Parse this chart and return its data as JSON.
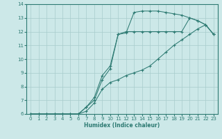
{
  "xlabel": "Humidex (Indice chaleur)",
  "xlim": [
    -0.5,
    23.5
  ],
  "ylim": [
    6,
    14
  ],
  "yticks": [
    6,
    7,
    8,
    9,
    10,
    11,
    12,
    13,
    14
  ],
  "xticks": [
    0,
    1,
    2,
    3,
    4,
    5,
    6,
    7,
    8,
    9,
    10,
    11,
    12,
    13,
    14,
    15,
    16,
    17,
    18,
    19,
    20,
    21,
    22,
    23
  ],
  "line_color": "#2d7a72",
  "bg_color": "#cce8e8",
  "grid_color": "#a8cccc",
  "lines": [
    {
      "x": [
        0,
        1,
        2,
        3,
        4,
        5,
        6,
        7,
        8,
        9,
        10,
        11,
        12,
        13,
        14,
        15,
        16,
        17,
        18,
        19,
        20,
        21,
        22,
        23
      ],
      "y": [
        6,
        6,
        6,
        6,
        6,
        6,
        6,
        6.5,
        7.2,
        8.8,
        9.5,
        11.8,
        11.9,
        13.4,
        13.5,
        13.5,
        13.5,
        13.4,
        13.3,
        13.2,
        13.0,
        12.8,
        12.5,
        11.8
      ]
    },
    {
      "x": [
        0,
        1,
        2,
        3,
        4,
        5,
        6,
        7,
        8,
        9,
        10,
        11,
        12,
        13,
        14,
        15,
        16,
        17,
        18,
        19,
        20,
        21,
        22,
        23
      ],
      "y": [
        6,
        6,
        6,
        6,
        6,
        6,
        6,
        6.5,
        7.0,
        8.5,
        9.3,
        11.8,
        12.0,
        12.0,
        12.0,
        12.0,
        12.0,
        12.0,
        12.0,
        12.0,
        13.0,
        12.8,
        12.5,
        11.8
      ]
    },
    {
      "x": [
        0,
        1,
        2,
        3,
        4,
        5,
        6,
        7,
        8,
        9,
        10,
        11,
        12,
        13,
        14,
        15,
        16,
        17,
        18,
        19,
        20,
        21,
        22,
        23
      ],
      "y": [
        6,
        6,
        6,
        6,
        6,
        6,
        6,
        6.2,
        6.8,
        7.8,
        8.3,
        8.5,
        8.8,
        9.0,
        9.2,
        9.5,
        10.0,
        10.5,
        11.0,
        11.4,
        11.8,
        12.2,
        12.5,
        11.8
      ]
    }
  ]
}
